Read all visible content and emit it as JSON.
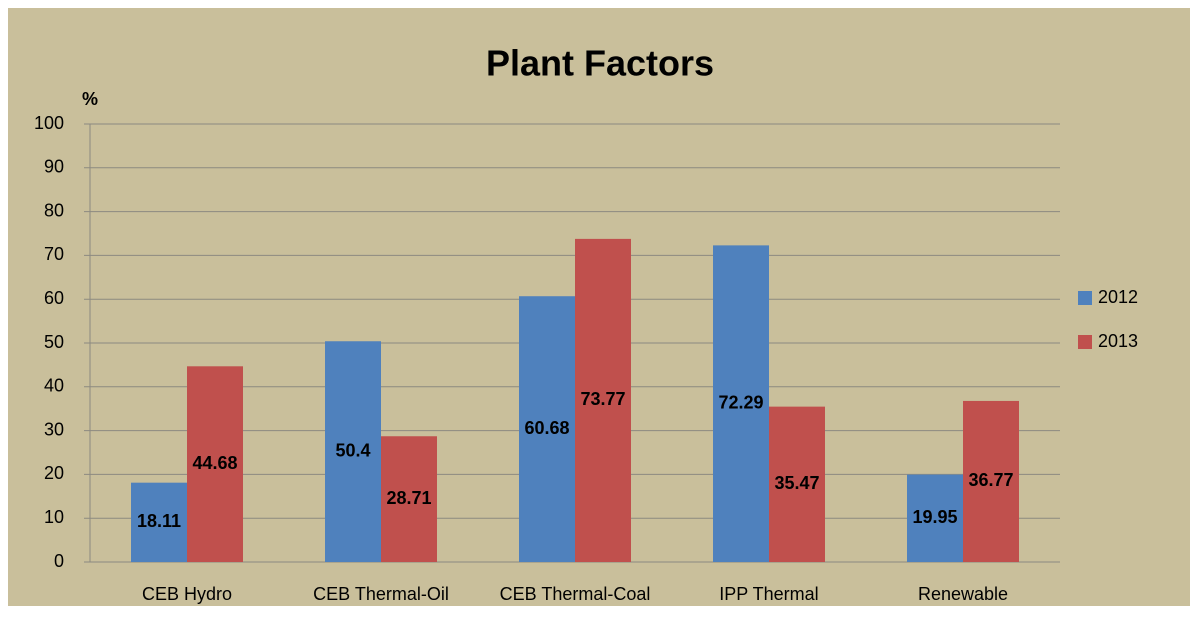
{
  "chart_data": {
    "type": "bar",
    "title": "Plant Factors",
    "y_label": "%",
    "categories": [
      "CEB Hydro",
      "CEB Thermal-Oil",
      "CEB Thermal-Coal",
      "IPP Thermal",
      "Renewable"
    ],
    "series": [
      {
        "name": "2012",
        "color": "#4f81bd",
        "values": [
          18.11,
          50.4,
          60.68,
          72.29,
          19.95
        ]
      },
      {
        "name": "2013",
        "color": "#c0504d",
        "values": [
          44.68,
          28.71,
          73.77,
          35.47,
          36.77
        ]
      }
    ],
    "ylim": [
      0,
      100
    ],
    "yticks": [
      0,
      10,
      20,
      30,
      40,
      50,
      60,
      70,
      80,
      90,
      100
    ],
    "grid": true,
    "legend": "right"
  }
}
